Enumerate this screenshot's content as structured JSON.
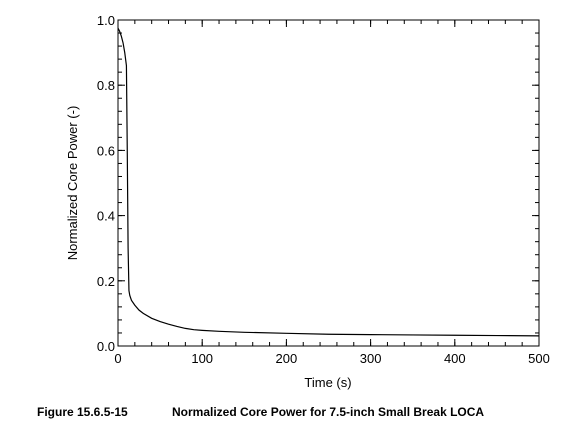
{
  "chart_data": {
    "type": "line",
    "title": "",
    "xlabel": "Time (s)",
    "ylabel": "Normalized Core Power (-)",
    "xlim": [
      0,
      500
    ],
    "ylim": [
      0,
      1.0
    ],
    "x_ticks": [
      "0",
      "100",
      "200",
      "300",
      "400",
      "500"
    ],
    "y_ticks": [
      "0.0",
      "0.2",
      "0.4",
      "0.6",
      "0.8",
      "1.0"
    ],
    "grid": false,
    "line_color": "#000000",
    "series": [
      {
        "x": [
          0,
          2,
          4,
          6,
          8,
          10,
          11,
          12,
          13,
          14,
          16,
          20,
          25,
          30,
          40,
          50,
          60,
          70,
          80,
          90,
          100,
          120,
          150,
          200,
          250,
          300,
          350,
          400,
          450,
          500
        ],
        "values": [
          0.975,
          0.965,
          0.95,
          0.93,
          0.9,
          0.86,
          0.6,
          0.3,
          0.17,
          0.155,
          0.14,
          0.125,
          0.11,
          0.1,
          0.085,
          0.075,
          0.067,
          0.06,
          0.054,
          0.05,
          0.048,
          0.045,
          0.042,
          0.039,
          0.036,
          0.035,
          0.034,
          0.033,
          0.032,
          0.031
        ]
      }
    ]
  },
  "figure_caption": {
    "number": "Figure 15.6.5-15",
    "title": "Normalized Core Power for 7.5-inch Small Break LOCA"
  }
}
